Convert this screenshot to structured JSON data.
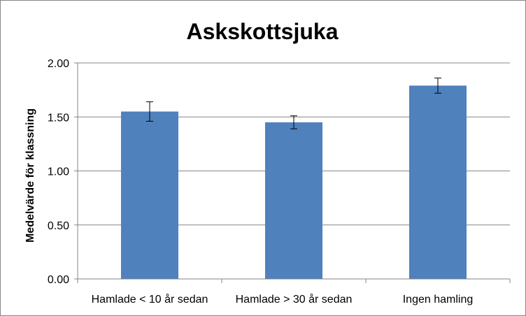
{
  "chart_data": {
    "type": "bar",
    "title": "Askskottsjuka",
    "xlabel": "",
    "ylabel": "Medelvärde för klassning",
    "categories": [
      "Hamlade < 10 år sedan",
      "Hamlade > 30 år sedan",
      "Ingen hamling"
    ],
    "values": [
      1.55,
      1.45,
      1.79
    ],
    "error_bars": [
      0.09,
      0.06,
      0.07
    ],
    "ylim": [
      0,
      2.0
    ],
    "yticks": [
      "0.00",
      "0.50",
      "1.00",
      "1.50",
      "2.00"
    ],
    "ytick_values": [
      0,
      0.5,
      1.0,
      1.5,
      2.0
    ],
    "grid": true,
    "bar_color": "#4F81BD",
    "grid_color": "#868686"
  }
}
